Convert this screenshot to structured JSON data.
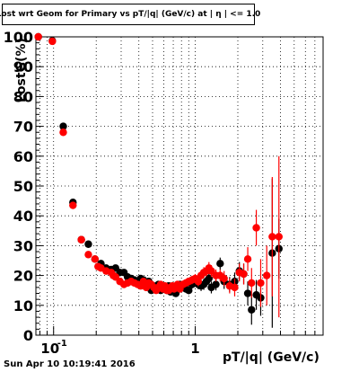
{
  "header": {
    "title": "Lost wrt Geom for Primary vs pT/|q| (GeV/c) at | η | <= 1.0"
  },
  "footer": {
    "timestamp": "Sun Apr 10 10:19:41 2016"
  },
  "chart_data": {
    "type": "scatter",
    "title": "Lost wrt Geom for Primary vs pT/|q| (GeV/c) at | η | <= 1.0",
    "xlabel": "pT/|q| (GeV/c)",
    "ylabel": "LostG(%)",
    "xscale": "log",
    "xlim": [
      0.075,
      8.0
    ],
    "ylim": [
      0,
      100
    ],
    "grid": true,
    "x_tick_labels": [
      {
        "value": 0.1,
        "label": "10",
        "exp": "-1"
      },
      {
        "value": 1.0,
        "label": "1",
        "exp": ""
      }
    ],
    "y_ticks": [
      0,
      10,
      20,
      30,
      40,
      50,
      60,
      70,
      80,
      90,
      100
    ],
    "series": [
      {
        "color": "#000000",
        "points": [
          [
            0.078,
            100,
            0.003,
            0.5
          ],
          [
            0.098,
            98.7,
            0.004,
            0.7
          ],
          [
            0.117,
            70,
            0.004,
            1.0
          ],
          [
            0.137,
            44.5,
            0.004,
            1.0
          ],
          [
            0.157,
            32,
            0.004,
            1.0
          ],
          [
            0.176,
            30.5,
            0.004,
            1.0
          ],
          [
            0.196,
            25.5,
            0.004,
            1.0
          ],
          [
            0.216,
            24,
            0.005,
            1.0
          ],
          [
            0.235,
            22.5,
            0.005,
            1.0
          ],
          [
            0.255,
            22,
            0.005,
            1.0
          ],
          [
            0.274,
            22.5,
            0.005,
            1.0
          ],
          [
            0.294,
            21,
            0.005,
            1.0
          ],
          [
            0.314,
            21,
            0.005,
            1.0
          ],
          [
            0.333,
            19.5,
            0.005,
            1.0
          ],
          [
            0.353,
            19,
            0.006,
            1.0
          ],
          [
            0.372,
            18.5,
            0.006,
            1.0
          ],
          [
            0.392,
            17.5,
            0.006,
            1.0
          ],
          [
            0.412,
            19,
            0.006,
            1.0
          ],
          [
            0.431,
            18.5,
            0.006,
            1.0
          ],
          [
            0.451,
            17.5,
            0.006,
            1.0
          ],
          [
            0.47,
            18,
            0.007,
            1.0
          ],
          [
            0.49,
            15,
            0.007,
            1.0
          ],
          [
            0.51,
            16,
            0.007,
            1.1
          ],
          [
            0.53,
            16.5,
            0.007,
            1.1
          ],
          [
            0.55,
            17,
            0.007,
            1.1
          ],
          [
            0.57,
            15,
            0.008,
            1.1
          ],
          [
            0.59,
            16,
            0.008,
            1.1
          ],
          [
            0.61,
            15.5,
            0.008,
            1.1
          ],
          [
            0.63,
            15,
            0.008,
            1.1
          ],
          [
            0.65,
            16.5,
            0.009,
            1.1
          ],
          [
            0.67,
            14.5,
            0.009,
            1.1
          ],
          [
            0.69,
            16,
            0.009,
            1.2
          ],
          [
            0.71,
            15,
            0.009,
            1.2
          ],
          [
            0.73,
            14,
            0.01,
            1.2
          ],
          [
            0.75,
            15.5,
            0.01,
            1.2
          ],
          [
            0.78,
            17,
            0.01,
            1.2
          ],
          [
            0.82,
            16,
            0.011,
            1.3
          ],
          [
            0.86,
            15.5,
            0.011,
            1.3
          ],
          [
            0.9,
            15,
            0.012,
            1.3
          ],
          [
            0.95,
            17,
            0.013,
            1.4
          ],
          [
            1.0,
            18,
            0.013,
            1.5
          ],
          [
            1.05,
            17,
            0.014,
            1.6
          ],
          [
            1.1,
            16.5,
            0.015,
            1.7
          ],
          [
            1.15,
            17,
            0.016,
            1.8
          ],
          [
            1.2,
            18,
            0.017,
            1.8
          ],
          [
            1.25,
            19,
            0.018,
            2.0
          ],
          [
            1.3,
            16,
            0.019,
            2.0
          ],
          [
            1.4,
            17,
            0.02,
            2.0
          ],
          [
            1.5,
            24,
            0.02,
            2.0
          ],
          [
            1.6,
            18,
            0.02,
            2.5
          ],
          [
            1.75,
            17,
            0.025,
            2.5
          ],
          [
            1.9,
            18,
            0.03,
            3.0
          ],
          [
            2.05,
            21.5,
            0.03,
            3.0
          ],
          [
            2.2,
            20.5,
            0.03,
            3.5
          ],
          [
            2.35,
            14,
            0.04,
            4.0
          ],
          [
            2.5,
            8.5,
            0.04,
            5.0
          ],
          [
            2.7,
            13.5,
            0.05,
            5.0
          ],
          [
            2.9,
            12.5,
            0.05,
            6.0
          ],
          [
            3.5,
            27.5,
            0.06,
            25.0
          ],
          [
            3.9,
            29,
            0.07,
            10.0
          ]
        ]
      },
      {
        "color": "#ff0000",
        "points": [
          [
            0.078,
            100,
            0.003,
            0.5
          ],
          [
            0.098,
            98.5,
            0.004,
            0.7
          ],
          [
            0.117,
            68,
            0.004,
            1.0
          ],
          [
            0.137,
            43.5,
            0.004,
            1.0
          ],
          [
            0.157,
            32,
            0.004,
            1.0
          ],
          [
            0.176,
            27,
            0.004,
            1.0
          ],
          [
            0.196,
            25.5,
            0.004,
            1.0
          ],
          [
            0.206,
            23,
            0.004,
            1.0
          ],
          [
            0.216,
            22.5,
            0.005,
            1.0
          ],
          [
            0.235,
            21.5,
            0.005,
            1.0
          ],
          [
            0.255,
            21,
            0.005,
            1.0
          ],
          [
            0.264,
            20,
            0.005,
            1.0
          ],
          [
            0.274,
            19.5,
            0.005,
            1.0
          ],
          [
            0.294,
            18,
            0.005,
            1.0
          ],
          [
            0.314,
            17,
            0.005,
            1.0
          ],
          [
            0.333,
            17.5,
            0.005,
            1.0
          ],
          [
            0.353,
            18,
            0.006,
            1.0
          ],
          [
            0.372,
            17.5,
            0.006,
            1.0
          ],
          [
            0.392,
            17,
            0.006,
            1.0
          ],
          [
            0.412,
            16.5,
            0.006,
            1.0
          ],
          [
            0.431,
            18,
            0.006,
            1.0
          ],
          [
            0.451,
            16,
            0.006,
            1.0
          ],
          [
            0.47,
            17.5,
            0.007,
            1.0
          ],
          [
            0.49,
            17,
            0.007,
            1.0
          ],
          [
            0.51,
            16,
            0.007,
            1.1
          ],
          [
            0.53,
            15,
            0.007,
            1.1
          ],
          [
            0.55,
            16,
            0.007,
            1.1
          ],
          [
            0.57,
            17,
            0.008,
            1.1
          ],
          [
            0.59,
            15.5,
            0.008,
            1.1
          ],
          [
            0.61,
            16.5,
            0.008,
            1.1
          ],
          [
            0.63,
            15,
            0.008,
            1.1
          ],
          [
            0.65,
            15,
            0.009,
            1.1
          ],
          [
            0.67,
            16,
            0.009,
            1.1
          ],
          [
            0.69,
            16.5,
            0.009,
            1.2
          ],
          [
            0.71,
            15.5,
            0.009,
            1.2
          ],
          [
            0.73,
            16,
            0.01,
            1.2
          ],
          [
            0.75,
            17,
            0.01,
            1.2
          ],
          [
            0.78,
            15.5,
            0.01,
            1.2
          ],
          [
            0.82,
            17,
            0.011,
            1.3
          ],
          [
            0.86,
            17.5,
            0.011,
            1.3
          ],
          [
            0.9,
            18,
            0.012,
            1.3
          ],
          [
            0.95,
            18.5,
            0.013,
            1.4
          ],
          [
            1.0,
            19,
            0.013,
            1.5
          ],
          [
            1.05,
            18,
            0.014,
            1.6
          ],
          [
            1.1,
            20,
            0.015,
            1.7
          ],
          [
            1.15,
            21,
            0.016,
            1.8
          ],
          [
            1.2,
            21.5,
            0.017,
            1.8
          ],
          [
            1.25,
            22.5,
            0.018,
            2.0
          ],
          [
            1.3,
            21.5,
            0.019,
            2.0
          ],
          [
            1.4,
            20,
            0.02,
            2.0
          ],
          [
            1.5,
            20,
            0.02,
            2.0
          ],
          [
            1.6,
            19,
            0.02,
            2.5
          ],
          [
            1.75,
            16.5,
            0.025,
            2.5
          ],
          [
            1.9,
            16,
            0.03,
            3.0
          ],
          [
            2.05,
            21,
            0.03,
            3.0
          ],
          [
            2.2,
            20.5,
            0.03,
            3.5
          ],
          [
            2.35,
            25.5,
            0.04,
            4.0
          ],
          [
            2.5,
            17.5,
            0.04,
            5.0
          ],
          [
            2.7,
            36,
            0.05,
            6.0
          ],
          [
            2.9,
            17.5,
            0.05,
            8.0
          ],
          [
            3.2,
            20,
            0.06,
            10.0
          ],
          [
            3.5,
            33,
            0.06,
            20.0
          ],
          [
            3.9,
            33,
            0.07,
            27.0
          ]
        ]
      }
    ]
  }
}
